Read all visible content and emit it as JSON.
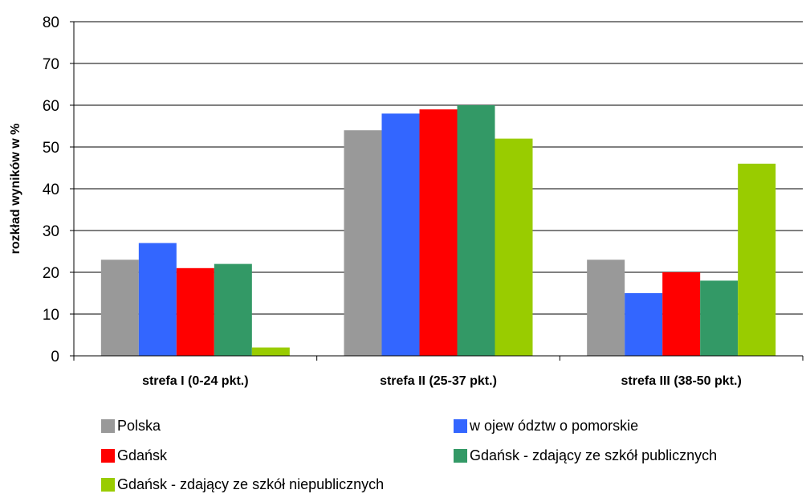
{
  "chart_data": {
    "type": "bar",
    "title": "",
    "xlabel": "",
    "ylabel": "rozkład wyników w %",
    "ylim": [
      0,
      80
    ],
    "yticks": [
      0,
      10,
      20,
      30,
      40,
      50,
      60,
      70,
      80
    ],
    "grid": true,
    "legend_position": "bottom",
    "categories": [
      "strefa I (0-24 pkt.)",
      "strefa II (25-37 pkt.)",
      "strefa III (38-50 pkt.)"
    ],
    "series": [
      {
        "name": "Polska",
        "color": "#999999",
        "values": [
          23,
          54,
          23
        ]
      },
      {
        "name": "w ojew ództw o pomorskie",
        "color": "#3366ff",
        "values": [
          27,
          58,
          15
        ]
      },
      {
        "name": "Gdańsk",
        "color": "#ff0000",
        "values": [
          21,
          59,
          20
        ]
      },
      {
        "name": "Gdańsk - zdający ze szkół publicznych",
        "color": "#339966",
        "values": [
          22,
          60,
          18
        ]
      },
      {
        "name": "Gdańsk - zdający ze szkół niepublicznych",
        "color": "#99cc00",
        "values": [
          2,
          52,
          46
        ]
      }
    ]
  }
}
